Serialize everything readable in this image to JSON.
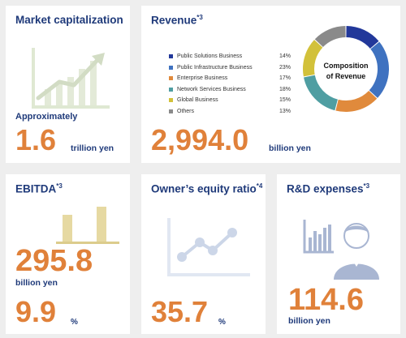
{
  "market_cap": {
    "title": "Market capitalization",
    "approx": "Approximately",
    "value": "1.6",
    "unit": "trillion yen",
    "icon": "rising-chart-icon"
  },
  "revenue": {
    "title": "Revenue",
    "note": "*3",
    "value": "2,994.0",
    "unit": "billion yen",
    "composition_label_line1": "Composition",
    "composition_label_line2": "of Revenue"
  },
  "ebitda": {
    "title": "EBITDA",
    "note": "*3",
    "value": "295.8",
    "unit": "billion yen",
    "margin_value": "9.9",
    "margin_unit": "%",
    "icon": "bar-chart-icon"
  },
  "equity_ratio": {
    "title": "Owner’s equity ratio",
    "note": "*4",
    "value": "35.7",
    "unit": "%",
    "icon": "line-chart-icon"
  },
  "rnd": {
    "title": "R&D expenses",
    "note": "*3",
    "value": "114.6",
    "unit": "billion yen",
    "icon": "researcher-icon"
  },
  "colors": {
    "navy": "#1f3a7a",
    "orange": "#e0813a"
  },
  "chart_data": {
    "type": "pie",
    "title": "Composition of Revenue",
    "categories": [
      "Public Solutions Business",
      "Public Infrastructure Business",
      "Enterprise Business",
      "Network Services Business",
      "Global Business",
      "Others"
    ],
    "values": [
      14,
      23,
      17,
      18,
      15,
      13
    ],
    "value_labels": [
      "14%",
      "23%",
      "17%",
      "18%",
      "15%",
      "13%"
    ],
    "colors": [
      "#22389a",
      "#3f72c0",
      "#e08a3c",
      "#4f9ea2",
      "#d2c13a",
      "#8a8a8a"
    ],
    "legend_position": "left",
    "donut": true
  }
}
